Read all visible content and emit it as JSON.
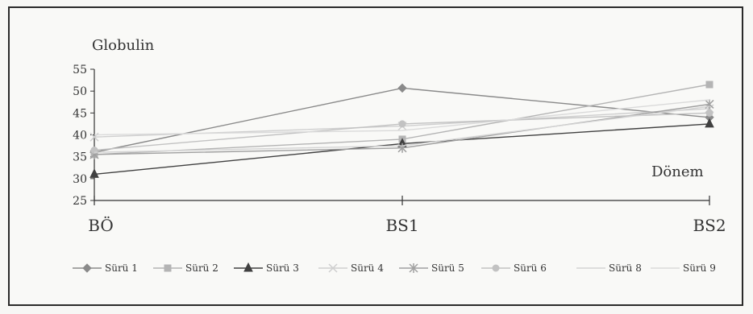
{
  "chart_data": {
    "type": "line",
    "ylabel": "Globulin",
    "xlabel": "Dönem",
    "categories": [
      "BÖ",
      "BS1",
      "BS2"
    ],
    "ylim": [
      25,
      55
    ],
    "yticks": [
      "25",
      "30",
      "35",
      "40",
      "45",
      "50",
      "55"
    ],
    "grid": false,
    "legend_position": "bottom",
    "series": [
      {
        "name": "Sürü 1",
        "values": [
          36,
          50.7,
          44
        ],
        "color": "#8a8a8a",
        "marker": "diamond"
      },
      {
        "name": "Sürü 2",
        "values": [
          35.5,
          39,
          51.5
        ],
        "color": "#b4b4b4",
        "marker": "square"
      },
      {
        "name": "Sürü 3",
        "values": [
          31,
          38,
          42.5
        ],
        "color": "#404040",
        "marker": "triangle"
      },
      {
        "name": "Sürü 4",
        "values": [
          39.5,
          42,
          46
        ],
        "color": "#cfcfcf",
        "marker": "x"
      },
      {
        "name": "Sürü 5",
        "values": [
          35.5,
          37,
          47
        ],
        "color": "#a0a0a0",
        "marker": "star"
      },
      {
        "name": "Sürü 6",
        "values": [
          36.5,
          42.5,
          45
        ],
        "color": "#c2c2c2",
        "marker": "circle"
      },
      {
        "name": "Sürü 8",
        "values": [
          36,
          37.5,
          46.5
        ],
        "color": "#d4d4d4",
        "marker": "none"
      },
      {
        "name": "Sürü 9",
        "values": [
          40,
          41,
          48
        ],
        "color": "#dadada",
        "marker": "none"
      }
    ]
  }
}
